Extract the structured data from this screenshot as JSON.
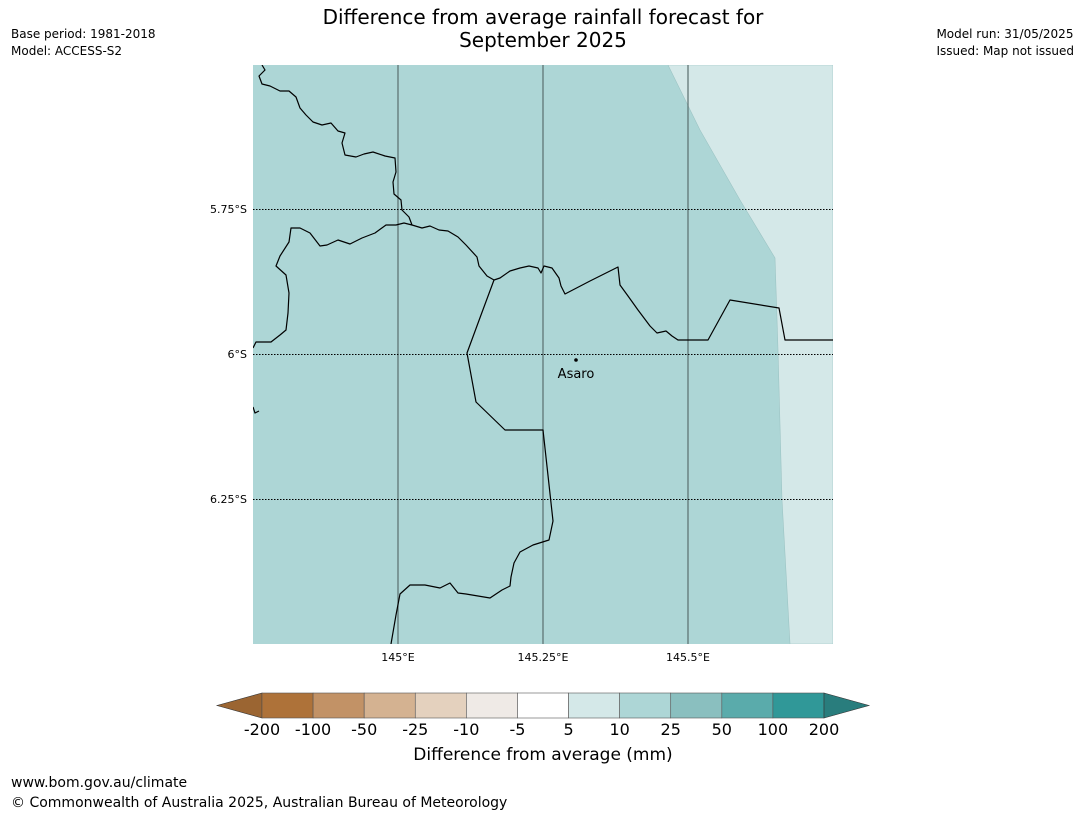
{
  "title": {
    "line1": "Difference from average rainfall forecast for",
    "line2": "September 2025"
  },
  "meta_left": {
    "base_period": "Base period: 1981-2018",
    "model": "Model: ACCESS-S2"
  },
  "meta_right": {
    "model_run": "Model run: 31/05/2025",
    "issued": "Issued: Map not issued"
  },
  "map": {
    "latitude_labels": [
      "5.75°S",
      "6°S",
      "6.25°S"
    ],
    "longitude_labels": [
      "145°E",
      "145.25°E",
      "145.5°E"
    ],
    "place": {
      "name": "Asaro"
    },
    "fill_colors": {
      "class_5_10": "#d4e8e8",
      "class_10_25": "#add6d6",
      "boundary": "#000000",
      "graticule": "#5a6e6e"
    }
  },
  "colorbar": {
    "ticks": [
      "-200",
      "-100",
      "-50",
      "-25",
      "-10",
      "-5",
      "5",
      "10",
      "25",
      "50",
      "100",
      "200"
    ],
    "colors": [
      "#9b6532",
      "#ae7239",
      "#c29266",
      "#d4b291",
      "#e4d1be",
      "#efeae6",
      "#ffffff",
      "#d4e8e8",
      "#add6d6",
      "#8abfbf",
      "#5aabab",
      "#309898",
      "#297d7d"
    ],
    "label": "Difference from average (mm)"
  },
  "footer": {
    "url": "www.bom.gov.au/climate",
    "copyright": "© Commonwealth of Australia 2025, Australian Bureau of Meteorology"
  }
}
